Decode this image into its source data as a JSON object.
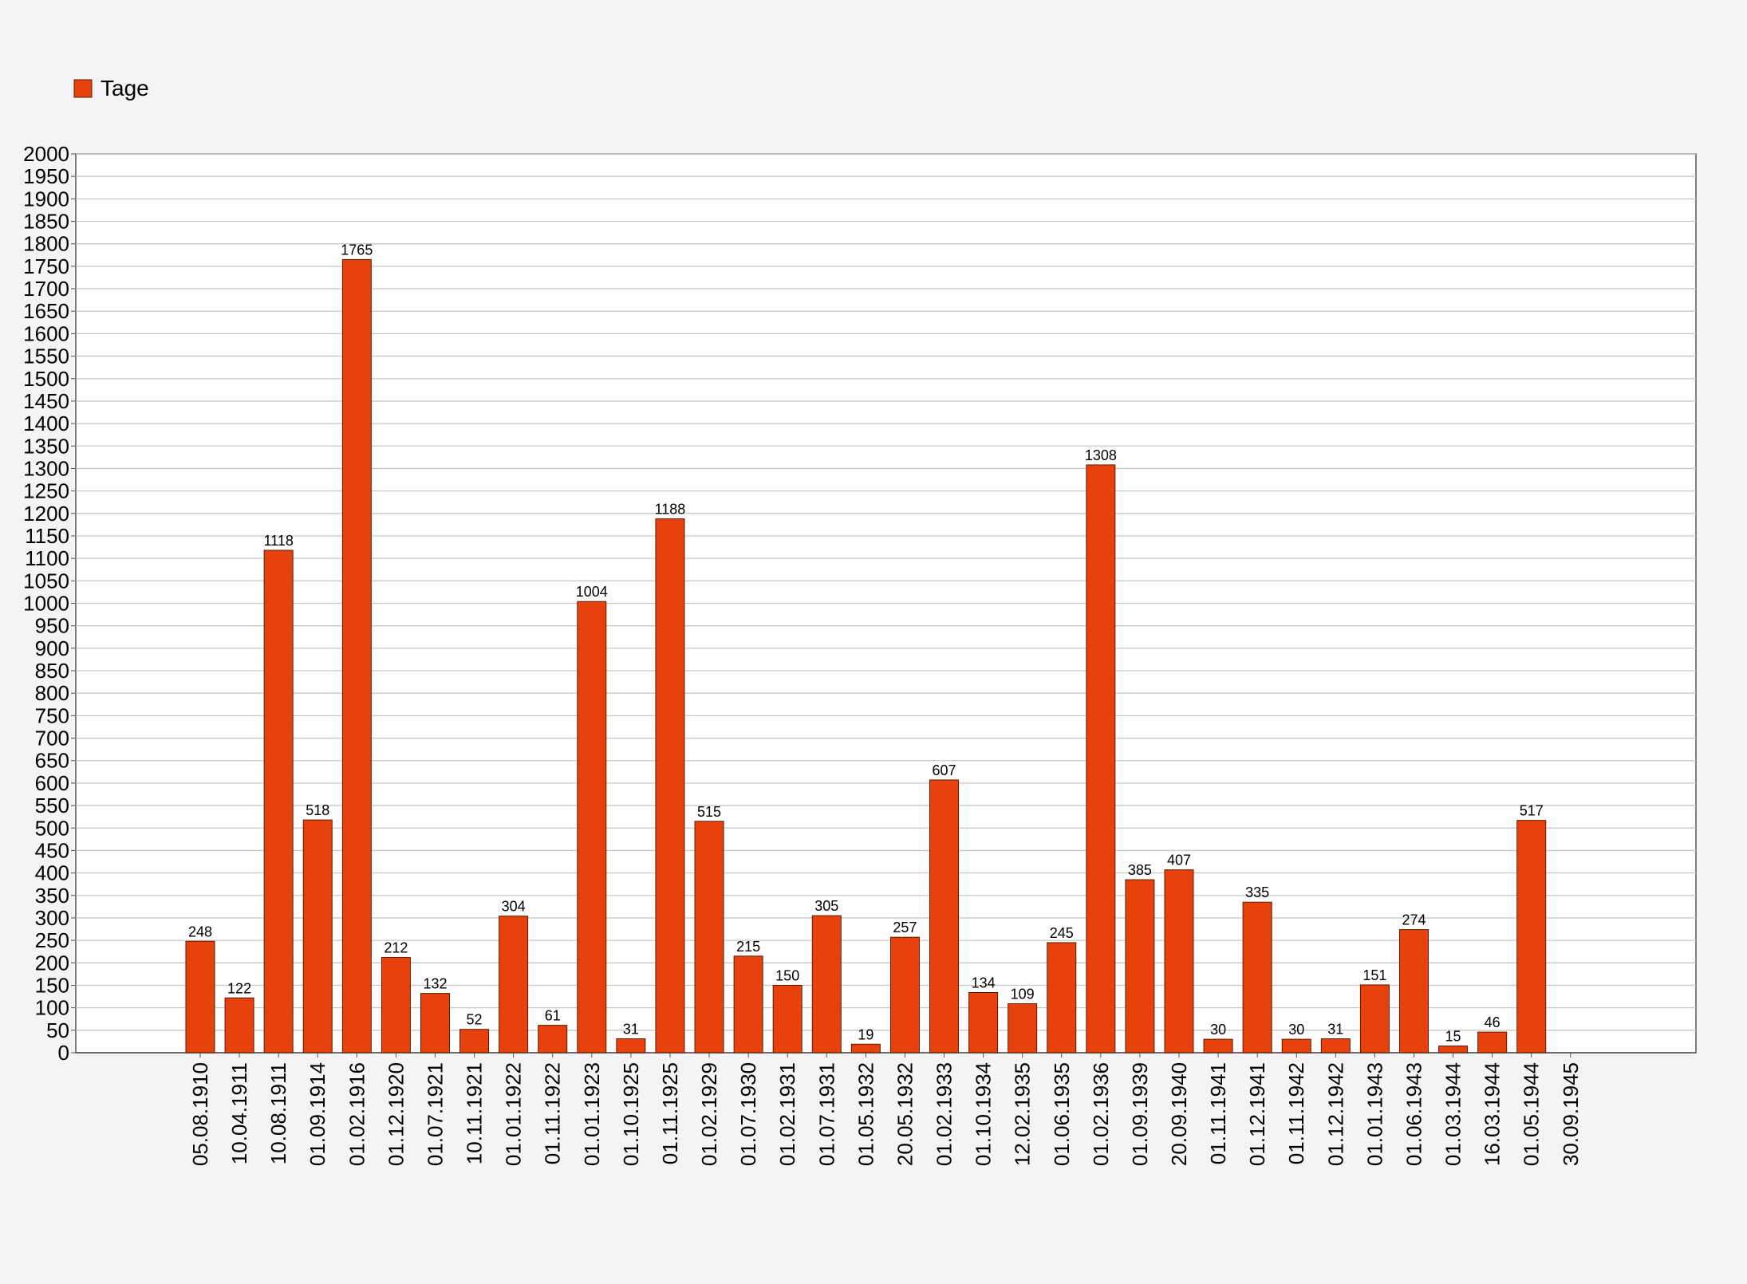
{
  "chart_data": {
    "type": "bar",
    "categories": [
      "05.08.1910",
      "10.04.1911",
      "10.08.1911",
      "01.09.1914",
      "01.02.1916",
      "01.12.1920",
      "01.07.1921",
      "10.11.1921",
      "01.01.1922",
      "01.11.1922",
      "01.01.1923",
      "01.10.1925",
      "01.11.1925",
      "01.02.1929",
      "01.07.1930",
      "01.02.1931",
      "01.07.1931",
      "01.05.1932",
      "20.05.1932",
      "01.02.1933",
      "01.10.1934",
      "12.02.1935",
      "01.06.1935",
      "01.02.1936",
      "01.09.1939",
      "20.09.1940",
      "01.11.1941",
      "01.12.1941",
      "01.11.1942",
      "01.12.1942",
      "01.01.1943",
      "01.06.1943",
      "01.03.1944",
      "16.03.1944",
      "01.05.1944",
      "30.09.1945"
    ],
    "series": [
      {
        "name": "Tage",
        "color": "#e8420c",
        "values": [
          248,
          122,
          1118,
          518,
          1765,
          212,
          132,
          52,
          304,
          61,
          1004,
          31,
          1188,
          515,
          215,
          150,
          305,
          19,
          257,
          607,
          134,
          109,
          245,
          1308,
          385,
          407,
          30,
          335,
          30,
          31,
          151,
          274,
          15,
          46,
          517,
          null
        ]
      }
    ],
    "ylim": [
      0,
      2000
    ],
    "yticks": [
      0,
      50,
      100,
      150,
      200,
      250,
      300,
      350,
      400,
      450,
      500,
      550,
      600,
      650,
      700,
      750,
      800,
      850,
      900,
      950,
      1000,
      1050,
      1100,
      1150,
      1200,
      1250,
      1300,
      1350,
      1400,
      1450,
      1500,
      1550,
      1600,
      1650,
      1700,
      1750,
      1800,
      1850,
      1900,
      1950,
      2000
    ],
    "grid": true,
    "legend": "top-left"
  }
}
